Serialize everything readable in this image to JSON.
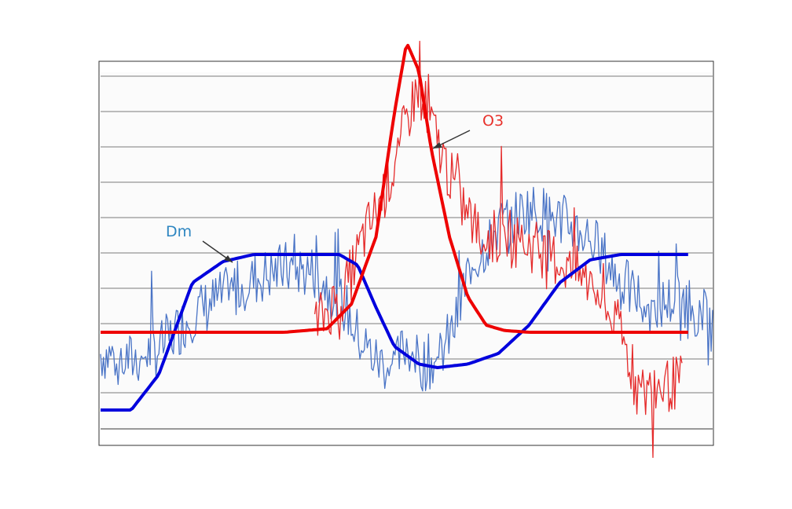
{
  "chart_data": {
    "type": "line",
    "title": "",
    "xlabel": "",
    "ylabel": "",
    "grid": true,
    "annotations": [
      {
        "text": "Dm",
        "target_series": "Dm",
        "color": "#2e86c1"
      },
      {
        "text": "O3",
        "target_series": "O3",
        "color": "#e8322c"
      }
    ],
    "series": [
      {
        "name": "Dm",
        "role": "fitted",
        "color": "#0000dd",
        "points": [
          [
            0,
            0.56
          ],
          [
            0.05,
            0.56
          ],
          [
            0.095,
            0.66
          ],
          [
            0.15,
            0.92
          ],
          [
            0.2,
            0.98
          ],
          [
            0.25,
            1.0
          ],
          [
            0.39,
            1.0
          ],
          [
            0.42,
            0.97
          ],
          [
            0.45,
            0.85
          ],
          [
            0.48,
            0.74
          ],
          [
            0.52,
            0.69
          ],
          [
            0.55,
            0.68
          ],
          [
            0.6,
            0.69
          ],
          [
            0.65,
            0.72
          ],
          [
            0.7,
            0.8
          ],
          [
            0.75,
            0.92
          ],
          [
            0.8,
            0.985
          ],
          [
            0.85,
            1.0
          ],
          [
            0.96,
            1.0
          ]
        ]
      },
      {
        "name": "O3",
        "role": "fitted",
        "color": "#ee0000",
        "points": [
          [
            0,
            0.78
          ],
          [
            0.3,
            0.78
          ],
          [
            0.37,
            0.79
          ],
          [
            0.41,
            0.86
          ],
          [
            0.45,
            1.05
          ],
          [
            0.48,
            1.4
          ],
          [
            0.5,
            1.6
          ],
          [
            0.52,
            1.52
          ],
          [
            0.54,
            1.3
          ],
          [
            0.57,
            1.05
          ],
          [
            0.6,
            0.88
          ],
          [
            0.63,
            0.8
          ],
          [
            0.66,
            0.785
          ],
          [
            0.7,
            0.78
          ],
          [
            0.96,
            0.78
          ]
        ]
      },
      {
        "name": "Dm",
        "role": "measured",
        "color": "#4a74c6",
        "anchors": [
          [
            0,
            0.72
          ],
          [
            0.05,
            0.7
          ],
          [
            0.1,
            0.74
          ],
          [
            0.15,
            0.83
          ],
          [
            0.2,
            0.88
          ],
          [
            0.25,
            0.93
          ],
          [
            0.3,
            0.96
          ],
          [
            0.35,
            0.95
          ],
          [
            0.4,
            0.85
          ],
          [
            0.42,
            0.77
          ],
          [
            0.45,
            0.7
          ],
          [
            0.48,
            0.68
          ],
          [
            0.5,
            0.75
          ],
          [
            0.52,
            0.69
          ],
          [
            0.55,
            0.7
          ],
          [
            0.58,
            0.8
          ],
          [
            0.6,
            0.95
          ],
          [
            0.65,
            1.08
          ],
          [
            0.7,
            1.13
          ],
          [
            0.75,
            1.1
          ],
          [
            0.8,
            1.05
          ],
          [
            0.85,
            0.92
          ],
          [
            0.9,
            0.85
          ],
          [
            0.95,
            0.88
          ],
          [
            1.0,
            0.8
          ]
        ]
      },
      {
        "name": "O3",
        "role": "measured",
        "color": "#e52b2b",
        "anchors": [
          [
            0.35,
            0.8
          ],
          [
            0.4,
            0.9
          ],
          [
            0.43,
            1.05
          ],
          [
            0.45,
            1.12
          ],
          [
            0.48,
            1.25
          ],
          [
            0.5,
            1.38
          ],
          [
            0.52,
            1.48
          ],
          [
            0.55,
            1.32
          ],
          [
            0.58,
            1.18
          ],
          [
            0.62,
            1.05
          ],
          [
            0.65,
            1.05
          ],
          [
            0.7,
            1.03
          ],
          [
            0.75,
            0.98
          ],
          [
            0.8,
            0.92
          ],
          [
            0.85,
            0.78
          ],
          [
            0.88,
            0.6
          ],
          [
            0.9,
            0.62
          ],
          [
            0.95,
            0.64
          ]
        ]
      }
    ]
  }
}
